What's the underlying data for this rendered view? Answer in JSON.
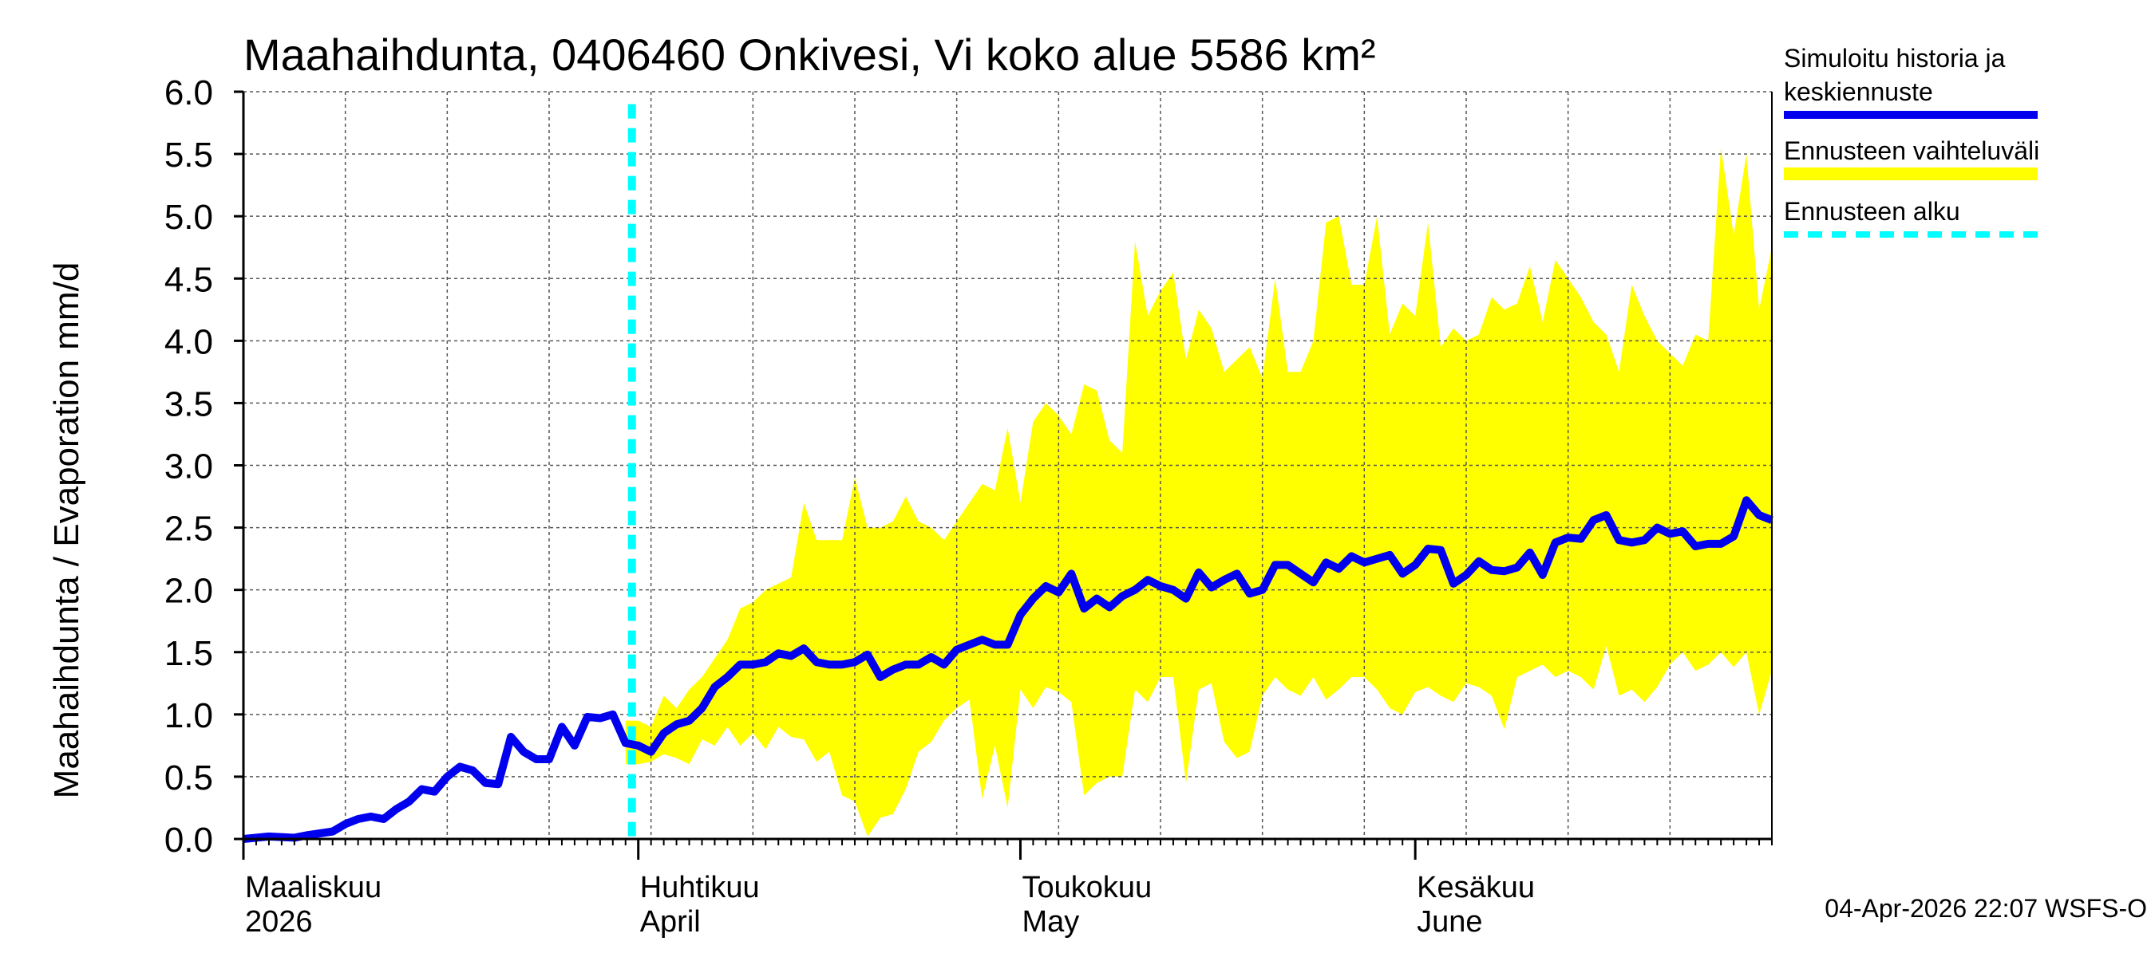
{
  "chart_data": {
    "type": "area",
    "title": "Maahaihdunta, 0406460 Onkivesi, Vi koko alue 5586 km²",
    "ylabel": "Maahaihdunta / Evaporation   mm/d",
    "ylim": [
      0,
      6
    ],
    "yticks": [
      "0.0",
      "0.5",
      "1.0",
      "1.5",
      "2.0",
      "2.5",
      "3.0",
      "3.5",
      "4.0",
      "4.5",
      "5.0",
      "5.5",
      "6.0"
    ],
    "x_range_days": [
      0,
      120
    ],
    "month_labels": [
      {
        "day": 0,
        "line1": "Maaliskuu",
        "line2": "2026"
      },
      {
        "day": 31,
        "line1": "Huhtikuu",
        "line2": "April"
      },
      {
        "day": 61,
        "line1": "Toukokuu",
        "line2": "May"
      },
      {
        "day": 92,
        "line1": "Kesäkuu",
        "line2": "June"
      }
    ],
    "forecast_start_day": 30.5,
    "series": [
      {
        "name": "Simuloitu historia ja keskiennuste",
        "color": "#0000ee",
        "points": [
          [
            0,
            0
          ],
          [
            2,
            0.02
          ],
          [
            4,
            0.01
          ],
          [
            5,
            0.03
          ],
          [
            7,
            0.06
          ],
          [
            8,
            0.12
          ],
          [
            9,
            0.16
          ],
          [
            10,
            0.18
          ],
          [
            11,
            0.16
          ],
          [
            12,
            0.24
          ],
          [
            13,
            0.3
          ],
          [
            14,
            0.4
          ],
          [
            15,
            0.38
          ],
          [
            16,
            0.5
          ],
          [
            17,
            0.58
          ],
          [
            18,
            0.55
          ],
          [
            19,
            0.45
          ],
          [
            20,
            0.44
          ],
          [
            21,
            0.82
          ],
          [
            22,
            0.7
          ],
          [
            23,
            0.64
          ],
          [
            24,
            0.64
          ],
          [
            25,
            0.9
          ],
          [
            26,
            0.75
          ],
          [
            27,
            0.98
          ],
          [
            28,
            0.97
          ],
          [
            29,
            1.0
          ],
          [
            30,
            0.77
          ],
          [
            31,
            0.75
          ],
          [
            32,
            0.7
          ],
          [
            33,
            0.85
          ],
          [
            34,
            0.92
          ],
          [
            35,
            0.95
          ],
          [
            36,
            1.05
          ],
          [
            37,
            1.22
          ],
          [
            38,
            1.3
          ],
          [
            39,
            1.4
          ],
          [
            40,
            1.4
          ],
          [
            41,
            1.42
          ],
          [
            42,
            1.49
          ],
          [
            43,
            1.47
          ],
          [
            44,
            1.53
          ],
          [
            45,
            1.42
          ],
          [
            46,
            1.4
          ],
          [
            47,
            1.4
          ],
          [
            48,
            1.42
          ],
          [
            49,
            1.48
          ],
          [
            50,
            1.3
          ],
          [
            51,
            1.36
          ],
          [
            52,
            1.4
          ],
          [
            53,
            1.4
          ],
          [
            54,
            1.46
          ],
          [
            55,
            1.4
          ],
          [
            56,
            1.52
          ],
          [
            57,
            1.56
          ],
          [
            58,
            1.6
          ],
          [
            59,
            1.56
          ],
          [
            60,
            1.56
          ],
          [
            61,
            1.8
          ],
          [
            62,
            1.93
          ],
          [
            63,
            2.03
          ],
          [
            64,
            1.98
          ],
          [
            65,
            2.13
          ],
          [
            66,
            1.85
          ],
          [
            67,
            1.93
          ],
          [
            68,
            1.86
          ],
          [
            69,
            1.95
          ],
          [
            70,
            2.0
          ],
          [
            71,
            2.08
          ],
          [
            72,
            2.03
          ],
          [
            73,
            2.0
          ],
          [
            74,
            1.93
          ],
          [
            75,
            2.14
          ],
          [
            76,
            2.02
          ],
          [
            77,
            2.08
          ],
          [
            78,
            2.13
          ],
          [
            79,
            1.97
          ],
          [
            80,
            2.0
          ],
          [
            81,
            2.2
          ],
          [
            82,
            2.2
          ],
          [
            83,
            2.13
          ],
          [
            84,
            2.06
          ],
          [
            85,
            2.22
          ],
          [
            86,
            2.17
          ],
          [
            87,
            2.27
          ],
          [
            88,
            2.22
          ],
          [
            89,
            2.25
          ],
          [
            90,
            2.28
          ],
          [
            91,
            2.13
          ],
          [
            92,
            2.2
          ],
          [
            93,
            2.33
          ],
          [
            94,
            2.32
          ],
          [
            95,
            2.05
          ],
          [
            96,
            2.12
          ],
          [
            97,
            2.23
          ],
          [
            98,
            2.16
          ],
          [
            99,
            2.15
          ],
          [
            100,
            2.18
          ],
          [
            101,
            2.3
          ],
          [
            102,
            2.12
          ],
          [
            103,
            2.38
          ],
          [
            104,
            2.42
          ],
          [
            105,
            2.41
          ],
          [
            106,
            2.56
          ],
          [
            107,
            2.6
          ],
          [
            108,
            2.4
          ],
          [
            109,
            2.38
          ],
          [
            110,
            2.4
          ],
          [
            111,
            2.5
          ],
          [
            112,
            2.45
          ],
          [
            113,
            2.47
          ],
          [
            114,
            2.35
          ],
          [
            115,
            2.37
          ],
          [
            116,
            2.37
          ],
          [
            117,
            2.43
          ],
          [
            118,
            2.72
          ],
          [
            119,
            2.6
          ],
          [
            120,
            2.56
          ]
        ]
      }
    ],
    "band": {
      "name": "Ennusteen vaihteluväli",
      "color": "#ffff00",
      "upper": [
        [
          30,
          0.95
        ],
        [
          31,
          0.95
        ],
        [
          32,
          0.9
        ],
        [
          33,
          1.15
        ],
        [
          34,
          1.05
        ],
        [
          35,
          1.2
        ],
        [
          36,
          1.3
        ],
        [
          37,
          1.45
        ],
        [
          38,
          1.6
        ],
        [
          39,
          1.85
        ],
        [
          40,
          1.9
        ],
        [
          41,
          2.0
        ],
        [
          42,
          2.05
        ],
        [
          43,
          2.1
        ],
        [
          44,
          2.7
        ],
        [
          45,
          2.4
        ],
        [
          46,
          2.4
        ],
        [
          47,
          2.4
        ],
        [
          48,
          2.9
        ],
        [
          49,
          2.5
        ],
        [
          50,
          2.5
        ],
        [
          51,
          2.55
        ],
        [
          52,
          2.75
        ],
        [
          53,
          2.55
        ],
        [
          54,
          2.5
        ],
        [
          55,
          2.4
        ],
        [
          56,
          2.55
        ],
        [
          57,
          2.7
        ],
        [
          58,
          2.85
        ],
        [
          59,
          2.8
        ],
        [
          60,
          3.3
        ],
        [
          61,
          2.7
        ],
        [
          62,
          3.35
        ],
        [
          63,
          3.5
        ],
        [
          64,
          3.4
        ],
        [
          65,
          3.25
        ],
        [
          66,
          3.65
        ],
        [
          67,
          3.6
        ],
        [
          68,
          3.2
        ],
        [
          69,
          3.1
        ],
        [
          70,
          4.8
        ],
        [
          71,
          4.2
        ],
        [
          72,
          4.4
        ],
        [
          73,
          4.55
        ],
        [
          74,
          3.85
        ],
        [
          75,
          4.25
        ],
        [
          76,
          4.1
        ],
        [
          77,
          3.75
        ],
        [
          78,
          3.85
        ],
        [
          79,
          3.95
        ],
        [
          80,
          3.7
        ],
        [
          81,
          4.5
        ],
        [
          82,
          3.75
        ],
        [
          83,
          3.75
        ],
        [
          84,
          4.0
        ],
        [
          85,
          4.95
        ],
        [
          86,
          5.0
        ],
        [
          87,
          4.45
        ],
        [
          88,
          4.45
        ],
        [
          89,
          5.0
        ],
        [
          90,
          4.05
        ],
        [
          91,
          4.3
        ],
        [
          92,
          4.2
        ],
        [
          93,
          4.95
        ],
        [
          94,
          3.95
        ],
        [
          95,
          4.1
        ],
        [
          96,
          4.0
        ],
        [
          97,
          4.05
        ],
        [
          98,
          4.35
        ],
        [
          99,
          4.25
        ],
        [
          100,
          4.3
        ],
        [
          101,
          4.6
        ],
        [
          102,
          4.15
        ],
        [
          103,
          4.65
        ],
        [
          104,
          4.5
        ],
        [
          105,
          4.35
        ],
        [
          106,
          4.15
        ],
        [
          107,
          4.05
        ],
        [
          108,
          3.75
        ],
        [
          109,
          4.45
        ],
        [
          110,
          4.2
        ],
        [
          111,
          4.0
        ],
        [
          112,
          3.9
        ],
        [
          113,
          3.8
        ],
        [
          114,
          4.05
        ],
        [
          115,
          4.0
        ],
        [
          116,
          5.55
        ],
        [
          117,
          4.85
        ],
        [
          118,
          5.5
        ],
        [
          119,
          4.25
        ],
        [
          120,
          4.75
        ]
      ],
      "lower": [
        [
          30,
          0.6
        ],
        [
          31,
          0.6
        ],
        [
          32,
          0.62
        ],
        [
          33,
          0.68
        ],
        [
          34,
          0.65
        ],
        [
          35,
          0.6
        ],
        [
          36,
          0.8
        ],
        [
          37,
          0.75
        ],
        [
          38,
          0.9
        ],
        [
          39,
          0.75
        ],
        [
          40,
          0.85
        ],
        [
          41,
          0.72
        ],
        [
          42,
          0.9
        ],
        [
          43,
          0.82
        ],
        [
          44,
          0.8
        ],
        [
          45,
          0.62
        ],
        [
          46,
          0.7
        ],
        [
          47,
          0.35
        ],
        [
          48,
          0.3
        ],
        [
          49,
          0.02
        ],
        [
          50,
          0.17
        ],
        [
          51,
          0.2
        ],
        [
          52,
          0.4
        ],
        [
          53,
          0.7
        ],
        [
          54,
          0.78
        ],
        [
          55,
          0.95
        ],
        [
          56,
          1.05
        ],
        [
          57,
          1.12
        ],
        [
          58,
          0.32
        ],
        [
          59,
          0.75
        ],
        [
          60,
          0.25
        ],
        [
          61,
          1.2
        ],
        [
          62,
          1.05
        ],
        [
          63,
          1.22
        ],
        [
          64,
          1.18
        ],
        [
          65,
          1.1
        ],
        [
          66,
          0.35
        ],
        [
          67,
          0.45
        ],
        [
          68,
          0.5
        ],
        [
          69,
          0.5
        ],
        [
          70,
          1.2
        ],
        [
          71,
          1.1
        ],
        [
          72,
          1.3
        ],
        [
          73,
          1.3
        ],
        [
          74,
          0.45
        ],
        [
          75,
          1.2
        ],
        [
          76,
          1.25
        ],
        [
          77,
          0.78
        ],
        [
          78,
          0.65
        ],
        [
          79,
          0.7
        ],
        [
          80,
          1.15
        ],
        [
          81,
          1.3
        ],
        [
          82,
          1.2
        ],
        [
          83,
          1.15
        ],
        [
          84,
          1.3
        ],
        [
          85,
          1.12
        ],
        [
          86,
          1.2
        ],
        [
          87,
          1.3
        ],
        [
          88,
          1.3
        ],
        [
          89,
          1.2
        ],
        [
          90,
          1.05
        ],
        [
          91,
          1.0
        ],
        [
          92,
          1.18
        ],
        [
          93,
          1.22
        ],
        [
          94,
          1.15
        ],
        [
          95,
          1.1
        ],
        [
          96,
          1.25
        ],
        [
          97,
          1.22
        ],
        [
          98,
          1.15
        ],
        [
          99,
          0.88
        ],
        [
          100,
          1.3
        ],
        [
          101,
          1.35
        ],
        [
          102,
          1.4
        ],
        [
          103,
          1.3
        ],
        [
          104,
          1.35
        ],
        [
          105,
          1.3
        ],
        [
          106,
          1.2
        ],
        [
          107,
          1.55
        ],
        [
          108,
          1.15
        ],
        [
          109,
          1.2
        ],
        [
          110,
          1.1
        ],
        [
          111,
          1.22
        ],
        [
          112,
          1.4
        ],
        [
          113,
          1.5
        ],
        [
          114,
          1.35
        ],
        [
          115,
          1.4
        ],
        [
          116,
          1.5
        ],
        [
          117,
          1.38
        ],
        [
          118,
          1.5
        ],
        [
          119,
          1.0
        ],
        [
          120,
          1.35
        ]
      ]
    },
    "forecast_line": {
      "name": "Ennusteen alku",
      "color": "#00ffff"
    },
    "legend_position": "right"
  },
  "legend": {
    "history_line1": "Simuloitu historia ja",
    "history_line2": "keskiennuste",
    "range": "Ennusteen vaihteluväli",
    "forecast_start": "Ennusteen alku"
  },
  "timestamp": "04-Apr-2026 22:07 WSFS-O"
}
